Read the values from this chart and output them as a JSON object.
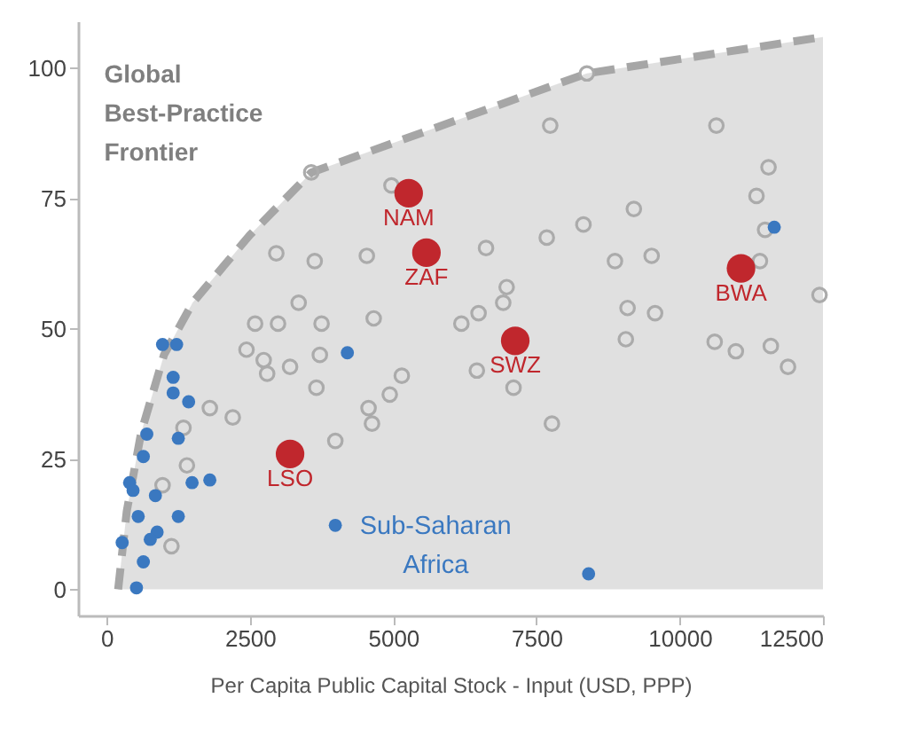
{
  "chart_data": {
    "type": "scatter",
    "xlabel": "Per Capita Public Capital Stock - Input (USD, PPP)",
    "xlim": [
      -500,
      12500
    ],
    "xticks": [
      0,
      2500,
      5000,
      7500,
      10000,
      12500
    ],
    "ylim": [
      -5,
      109
    ],
    "yticks": [
      0,
      25,
      50,
      75,
      100
    ],
    "series": [
      {
        "name": "Global Best-Practice Frontier",
        "type": "area",
        "line_style": "dashed",
        "color": "#a6a6a6",
        "x": [
          200,
          350,
          600,
          1000,
          1500,
          2500,
          3570,
          8380,
          12500
        ],
        "values": [
          0,
          15,
          30,
          45,
          55,
          68,
          80,
          99,
          106
        ]
      },
      {
        "color": "#ababab",
        "marker": "circle",
        "x": [
          3570,
          8380,
          4970,
          2960,
          3630,
          4540,
          3350,
          2590,
          2990,
          3750,
          4660,
          7740,
          10640,
          11550,
          11340,
          9200,
          8320,
          7680,
          6620,
          11490,
          9510,
          8870,
          11400,
          6980,
          6920,
          6490,
          6190,
          9090,
          9570,
          12440,
          9060,
          10610,
          10980,
          11590,
          11890,
          6460,
          7100,
          7770,
          2440,
          2740,
          3200,
          2800,
          3720,
          3660,
          1800,
          2200,
          1340,
          1400,
          975,
          1130,
          3990,
          4570,
          4630,
          4940,
          5150
        ],
        "values": [
          80,
          99,
          77.5,
          64.5,
          63,
          64,
          55,
          51,
          51,
          51,
          52,
          89,
          89,
          81,
          75.5,
          73,
          70,
          67.5,
          65.5,
          69,
          64,
          63,
          63,
          58,
          55,
          53,
          51,
          54,
          53,
          56.5,
          48,
          47.5,
          45.7,
          46.7,
          42.7,
          42,
          38.7,
          31.8,
          46,
          44,
          42.7,
          41.4,
          45,
          38.7,
          34.8,
          33,
          31,
          23.8,
          20,
          8.3,
          28.5,
          34.8,
          31.8,
          37.4,
          41
        ]
      },
      {
        "name": "Sub-Saharan Africa",
        "color": "#3a78c0",
        "marker": "circle",
        "x": [
          975,
          1220,
          1160,
          1160,
          1430,
          700,
          1250,
          640,
          400,
          460,
          1490,
          1800,
          850,
          550,
          1250,
          880,
          760,
          270,
          640,
          520,
          4200,
          3990,
          11650,
          8410
        ],
        "values": [
          47,
          47,
          40.7,
          37.7,
          36,
          29.8,
          29,
          25.5,
          20.5,
          19,
          20.5,
          21,
          18,
          14,
          14,
          11,
          9.6,
          9,
          5.3,
          0.3,
          45.4,
          12.3,
          69.5,
          3
        ]
      },
      {
        "color": "#c0272d",
        "marker": "circle",
        "x": [
          5270,
          5580,
          7130,
          11070,
          3200
        ],
        "values": [
          76,
          64.6,
          47.7,
          61.6,
          26
        ],
        "value_labels": [
          "NAM",
          "ZAF",
          "SWZ",
          "BWA",
          "LSO"
        ]
      }
    ]
  }
}
